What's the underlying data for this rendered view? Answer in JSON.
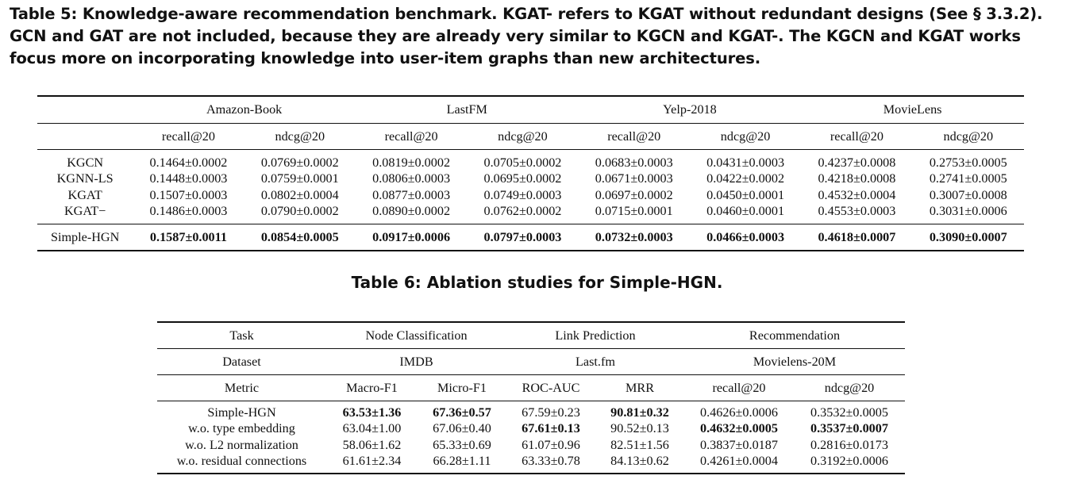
{
  "table5": {
    "caption": "Table 5: Knowledge-aware recommendation benchmark. KGAT- refers to KGAT without redundant designs (See § 3.3.2). GCN and GAT are not included, because they are already very similar to KGCN and KGAT-. The KGCN and KGAT works focus more on incorporating knowledge into user-item graphs than new architectures.",
    "datasets": [
      "Amazon-Book",
      "LastFM",
      "Yelp-2018",
      "MovieLens"
    ],
    "metrics": [
      "recall@20",
      "ndcg@20",
      "recall@20",
      "ndcg@20",
      "recall@20",
      "ndcg@20",
      "recall@20",
      "ndcg@20"
    ],
    "rows": [
      {
        "model": "KGCN",
        "values": [
          "0.1464±0.0002",
          "0.0769±0.0002",
          "0.0819±0.0002",
          "0.0705±0.0002",
          "0.0683±0.0003",
          "0.0431±0.0003",
          "0.4237±0.0008",
          "0.2753±0.0005"
        ]
      },
      {
        "model": "KGNN-LS",
        "values": [
          "0.1448±0.0003",
          "0.0759±0.0001",
          "0.0806±0.0003",
          "0.0695±0.0002",
          "0.0671±0.0003",
          "0.0422±0.0002",
          "0.4218±0.0008",
          "0.2741±0.0005"
        ]
      },
      {
        "model": "KGAT",
        "values": [
          "0.1507±0.0003",
          "0.0802±0.0004",
          "0.0877±0.0003",
          "0.0749±0.0003",
          "0.0697±0.0002",
          "0.0450±0.0001",
          "0.4532±0.0004",
          "0.3007±0.0008"
        ]
      },
      {
        "model": "KGAT−",
        "values": [
          "0.1486±0.0003",
          "0.0790±0.0002",
          "0.0890±0.0002",
          "0.0762±0.0002",
          "0.0715±0.0001",
          "0.0460±0.0001",
          "0.4553±0.0003",
          "0.3031±0.0006"
        ]
      }
    ],
    "simple_hgn": {
      "model": "Simple-HGN",
      "values": [
        "0.1587±0.0011",
        "0.0854±0.0005",
        "0.0917±0.0006",
        "0.0797±0.0003",
        "0.0732±0.0003",
        "0.0466±0.0003",
        "0.4618±0.0007",
        "0.3090±0.0007"
      ]
    }
  },
  "table6": {
    "caption": "Table 6: Ablation studies for Simple-HGN.",
    "task_label": "Task",
    "tasks": [
      "Node Classification",
      "Link Prediction",
      "Recommendation"
    ],
    "dataset_label": "Dataset",
    "datasets": [
      "IMDB",
      "Last.fm",
      "Movielens-20M"
    ],
    "metric_label": "Metric",
    "metrics": [
      "Macro-F1",
      "Micro-F1",
      "ROC-AUC",
      "MRR",
      "recall@20",
      "ndcg@20"
    ],
    "rows": [
      {
        "name": "Simple-HGN",
        "values": [
          "63.53±1.36",
          "67.36±0.57",
          "67.59±0.23",
          "90.81±0.32",
          "0.4626±0.0006",
          "0.3532±0.0005"
        ]
      },
      {
        "name": "w.o. type embedding",
        "values": [
          "63.04±1.00",
          "67.06±0.40",
          "67.61±0.13",
          "90.52±0.13",
          "0.4632±0.0005",
          "0.3537±0.0007"
        ]
      },
      {
        "name": "w.o. L2 normalization",
        "values": [
          "58.06±1.62",
          "65.33±0.69",
          "61.07±0.96",
          "82.51±1.56",
          "0.3837±0.0187",
          "0.2816±0.0173"
        ]
      },
      {
        "name": "w.o. residual connections",
        "values": [
          "61.61±2.34",
          "66.28±1.11",
          "63.33±0.78",
          "84.13±0.62",
          "0.4261±0.0004",
          "0.3192±0.0006"
        ]
      }
    ]
  }
}
